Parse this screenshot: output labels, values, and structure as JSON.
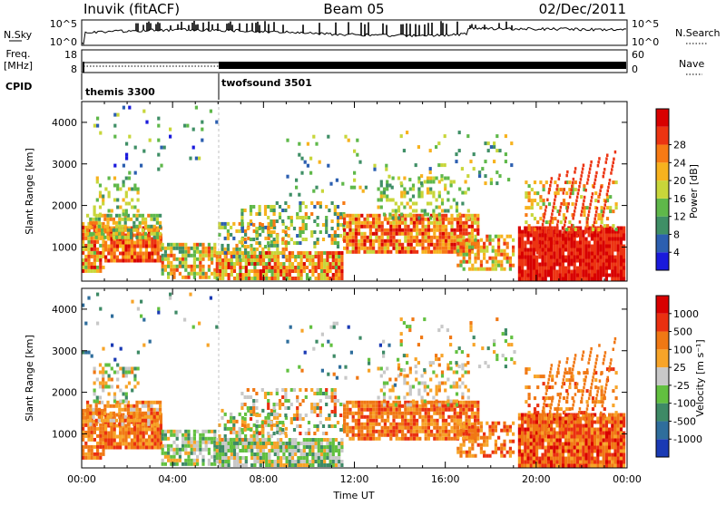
{
  "header": {
    "station": "Inuvik (fitACF)",
    "beam": "Beam 05",
    "date": "02/Dec/2011"
  },
  "strips": {
    "nsky": {
      "label": "N.Sky",
      "ticks": [
        "10^5",
        "10^0"
      ]
    },
    "nsearch": {
      "label": "N.Search",
      "ticks": [
        "10^5",
        "10^0"
      ]
    },
    "freq": {
      "label_top": "Freq.",
      "label_bottom": "[MHz]",
      "ticks": [
        "18",
        "8"
      ]
    },
    "nave": {
      "label": "Nave",
      "ticks": [
        "60",
        "0"
      ]
    },
    "cpid": {
      "label": "CPID",
      "modes": [
        {
          "name": "themis 3300",
          "start_hour": 0
        },
        {
          "name": "twofsound 3501",
          "start_hour": 6
        }
      ]
    }
  },
  "chart_data": [
    {
      "type": "heatmap",
      "title": "",
      "xlabel": "",
      "ylabel": "Slant Range [km]",
      "xlim": [
        0,
        24
      ],
      "ylim": [
        180,
        4500
      ],
      "yticks": [
        "1000",
        "2000",
        "3000",
        "4000"
      ],
      "colorbar": {
        "label": "Power [dB]",
        "range": [
          0,
          32
        ],
        "ticks": [
          "4",
          "8",
          "12",
          "16",
          "20",
          "24",
          "28"
        ],
        "colors": [
          "#1a1adc",
          "#2c5fb0",
          "#3f8f66",
          "#5fb84a",
          "#c8d63a",
          "#f7b21e",
          "#f77a14",
          "#ec3412",
          "#d80000"
        ]
      }
    },
    {
      "type": "heatmap",
      "title": "",
      "xlabel": "Time UT",
      "ylabel": "Slant Range [km]",
      "xlim": [
        0,
        24
      ],
      "ylim": [
        180,
        4500
      ],
      "xticks": [
        "00:00",
        "04:00",
        "08:00",
        "12:00",
        "16:00",
        "20:00",
        "00:00"
      ],
      "yticks": [
        "1000",
        "2000",
        "3000",
        "4000"
      ],
      "colorbar": {
        "label": "Velocity [m s⁻¹]",
        "ticks": [
          "1000",
          "500",
          "100",
          "25",
          "-25",
          "-100",
          "-500",
          "-1000"
        ],
        "colors": [
          "#1a3ab4",
          "#2f6e9c",
          "#3e8a66",
          "#62c040",
          "#c8c8c8",
          "#f7a428",
          "#f07814",
          "#ea3010",
          "#d80000"
        ]
      }
    }
  ]
}
